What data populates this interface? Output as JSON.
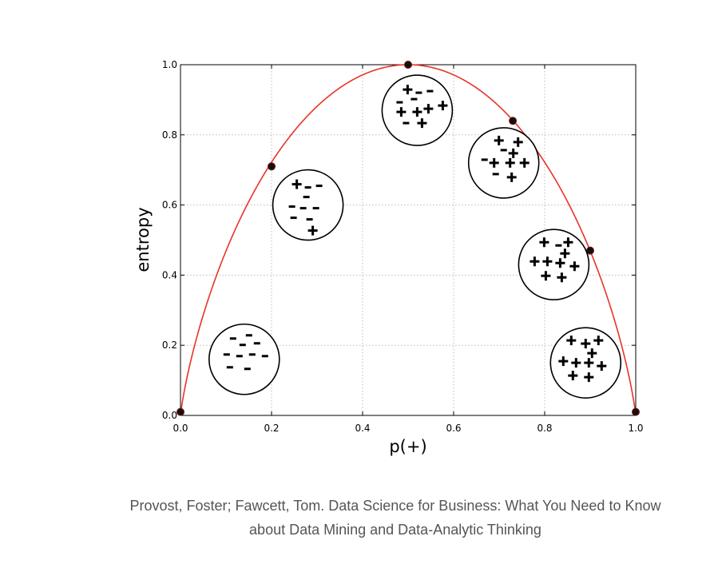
{
  "chart_data": {
    "type": "line",
    "title": "",
    "xlabel": "p(+)",
    "ylabel": "entropy",
    "xlim": [
      0.0,
      1.0
    ],
    "ylim": [
      0.0,
      1.0
    ],
    "x_ticks": [
      "0.0",
      "0.2",
      "0.4",
      "0.6",
      "0.8",
      "1.0"
    ],
    "y_ticks": [
      "0.0",
      "0.2",
      "0.4",
      "0.6",
      "0.8",
      "1.0"
    ],
    "grid": true,
    "curve_color": "#e8332a",
    "series": [
      {
        "x": [
          0.0,
          0.2,
          0.5,
          0.73,
          0.9,
          1.0
        ],
        "y": [
          0.01,
          0.71,
          1.0,
          0.84,
          0.47,
          0.01
        ]
      }
    ],
    "samples": [
      {
        "cx": 0.14,
        "cy": 0.16,
        "items": [
          [
            "-",
            -14,
            -26
          ],
          [
            "-",
            6,
            -30
          ],
          [
            "-",
            -2,
            -18
          ],
          [
            "-",
            16,
            -20
          ],
          [
            "-",
            -22,
            -6
          ],
          [
            "-",
            -6,
            -4
          ],
          [
            "-",
            10,
            -6
          ],
          [
            "-",
            26,
            -4
          ],
          [
            "-",
            -18,
            10
          ],
          [
            "-",
            4,
            12
          ]
        ]
      },
      {
        "cx": 0.28,
        "cy": 0.6,
        "items": [
          [
            "+",
            -14,
            -26
          ],
          [
            "-",
            0,
            -22
          ],
          [
            "-",
            14,
            -24
          ],
          [
            "-",
            -2,
            -10
          ],
          [
            "-",
            -20,
            2
          ],
          [
            "-",
            -6,
            4
          ],
          [
            "-",
            10,
            4
          ],
          [
            "-",
            -18,
            16
          ],
          [
            "-",
            2,
            18
          ],
          [
            "+",
            6,
            32
          ]
        ]
      },
      {
        "cx": 0.52,
        "cy": 0.87,
        "items": [
          [
            "+",
            -12,
            -26
          ],
          [
            "-",
            2,
            -22
          ],
          [
            "-",
            16,
            -24
          ],
          [
            "-",
            -22,
            -10
          ],
          [
            "-",
            -4,
            -14
          ],
          [
            "+",
            -20,
            2
          ],
          [
            "+",
            0,
            2
          ],
          [
            "+",
            14,
            -2
          ],
          [
            "+",
            32,
            -6
          ],
          [
            "-",
            -14,
            16
          ],
          [
            "+",
            6,
            16
          ]
        ]
      },
      {
        "cx": 0.71,
        "cy": 0.72,
        "items": [
          [
            "+",
            -6,
            -28
          ],
          [
            "+",
            18,
            -26
          ],
          [
            "-",
            0,
            -16
          ],
          [
            "+",
            12,
            -12
          ],
          [
            "-",
            -24,
            -4
          ],
          [
            "+",
            -12,
            0
          ],
          [
            "+",
            8,
            0
          ],
          [
            "+",
            26,
            0
          ],
          [
            "-",
            -10,
            14
          ],
          [
            "+",
            10,
            18
          ]
        ]
      },
      {
        "cx": 0.82,
        "cy": 0.43,
        "items": [
          [
            "+",
            -12,
            -28
          ],
          [
            "-",
            6,
            -24
          ],
          [
            "+",
            18,
            -28
          ],
          [
            "+",
            14,
            -14
          ],
          [
            "+",
            -24,
            -4
          ],
          [
            "+",
            -8,
            -4
          ],
          [
            "+",
            8,
            -2
          ],
          [
            "+",
            26,
            2
          ],
          [
            "+",
            -10,
            14
          ],
          [
            "+",
            10,
            16
          ]
        ]
      },
      {
        "cx": 0.89,
        "cy": 0.15,
        "items": [
          [
            "+",
            -18,
            -28
          ],
          [
            "+",
            0,
            -24
          ],
          [
            "+",
            16,
            -28
          ],
          [
            "+",
            8,
            -12
          ],
          [
            "+",
            -28,
            -2
          ],
          [
            "+",
            -12,
            0
          ],
          [
            "+",
            4,
            0
          ],
          [
            "+",
            20,
            4
          ],
          [
            "+",
            -16,
            16
          ],
          [
            "+",
            4,
            18
          ]
        ]
      }
    ]
  },
  "caption": {
    "line1": "Provost, Foster; Fawcett, Tom. Data Science for Business: What You Need to Know",
    "line2": "about Data Mining and Data-Analytic Thinking"
  }
}
